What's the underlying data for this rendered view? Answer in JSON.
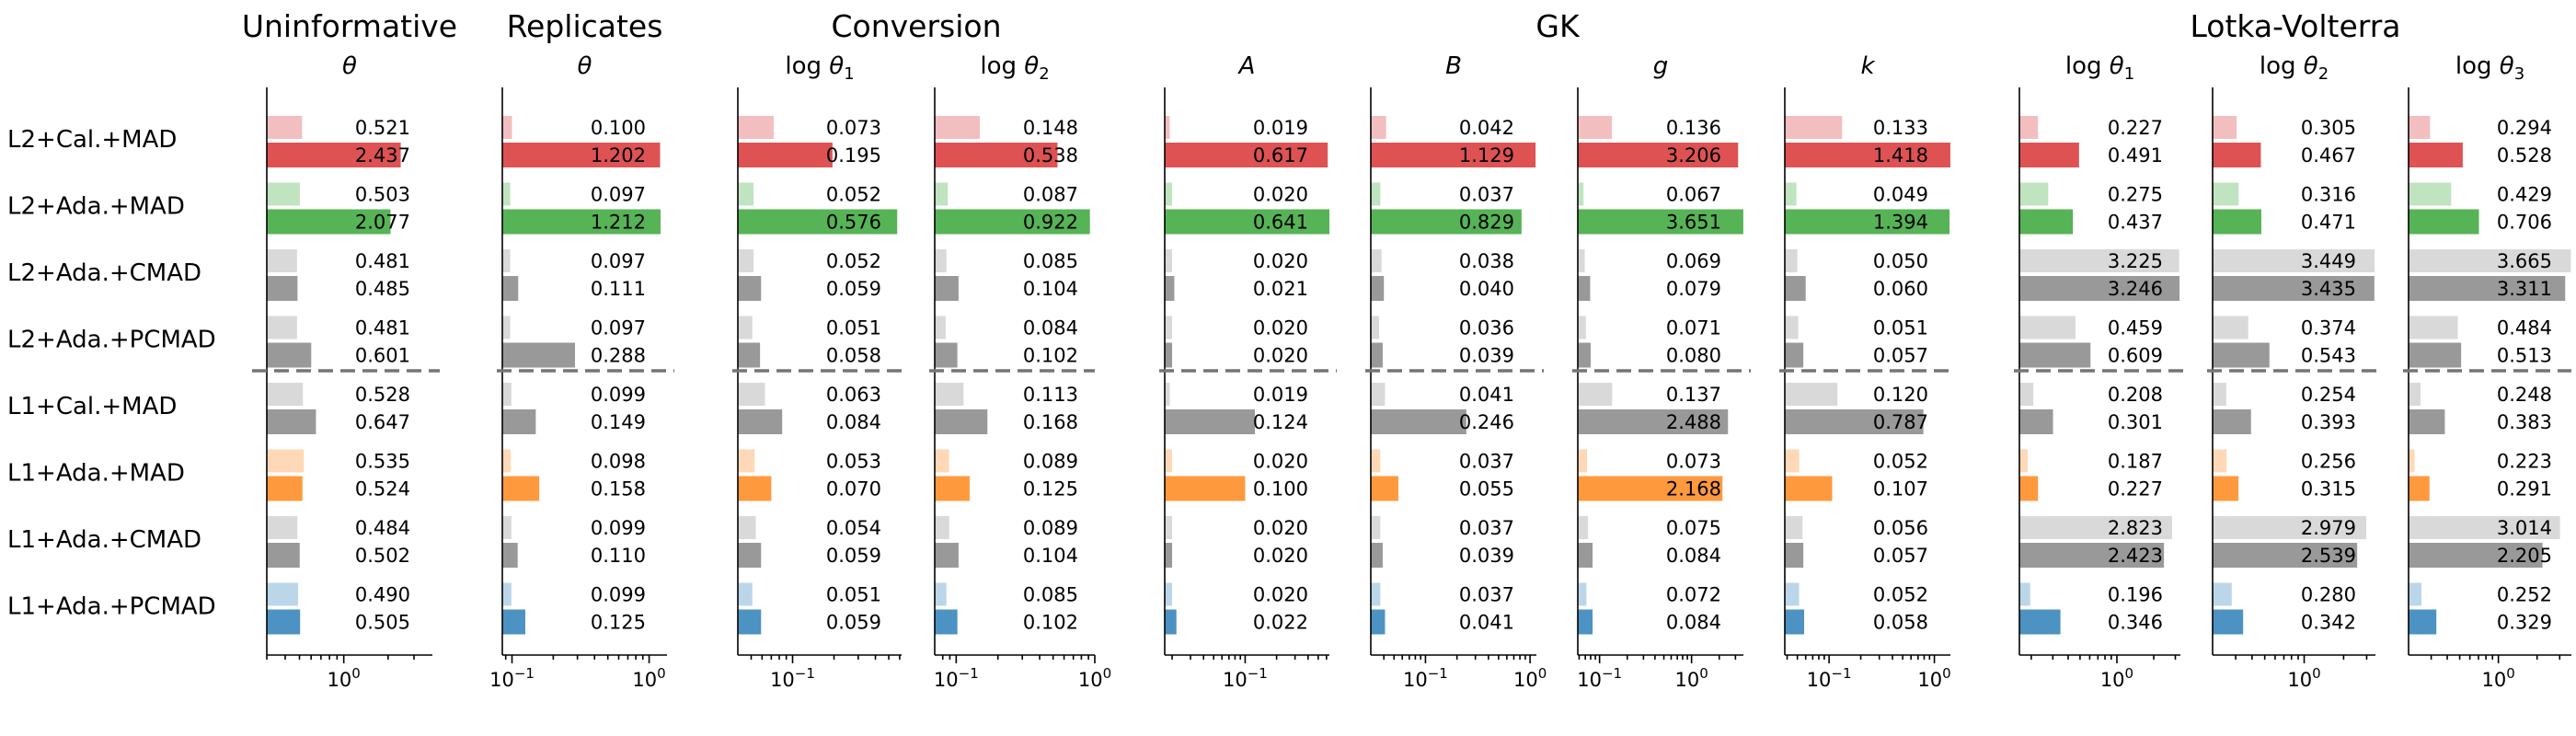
{
  "chart_data": {
    "type": "bar",
    "orientation": "horizontal",
    "x_scale": "log",
    "groups": [
      {
        "title": "Uninformative",
        "panels": [
          0
        ]
      },
      {
        "title": "Replicates",
        "panels": [
          1
        ]
      },
      {
        "title": "Conversion",
        "panels": [
          2,
          3
        ]
      },
      {
        "title": "GK",
        "panels": [
          4,
          5,
          6,
          7
        ]
      },
      {
        "title": "Lotka-Volterra",
        "panels": [
          8,
          9,
          10
        ]
      }
    ],
    "methods": [
      "L2+Cal.+MAD",
      "L2+Ada.+MAD",
      "L2+Ada.+CMAD",
      "L2+Ada.+PCMAD",
      "L1+Cal.+MAD",
      "L1+Ada.+MAD",
      "L1+Ada.+CMAD",
      "L1+Ada.+PCMAD"
    ],
    "method_colors": [
      "#d62728",
      "#2ca02c",
      "#7f7f7f",
      "#7f7f7f",
      "#7f7f7f",
      "#ff7f0e",
      "#7f7f7f",
      "#1f77b4"
    ],
    "series_roles": [
      "upper value (light bar)",
      "lower value (dark bar)"
    ],
    "panels": [
      {
        "label": "θ",
        "prefix": "",
        "subscript": "",
        "xlim": [
          0.3,
          4.0
        ],
        "ticks": [
          {
            "value": 1,
            "label": "10",
            "exp": "0"
          }
        ],
        "light": [
          0.521,
          0.503,
          0.481,
          0.481,
          0.528,
          0.535,
          0.484,
          0.49
        ],
        "dark": [
          2.437,
          2.077,
          0.485,
          0.601,
          0.647,
          0.524,
          0.502,
          0.505
        ]
      },
      {
        "label": "θ",
        "prefix": "",
        "subscript": "",
        "xlim": [
          0.085,
          1.35
        ],
        "ticks": [
          {
            "value": 0.1,
            "label": "10",
            "exp": "−1"
          },
          {
            "value": 1,
            "label": "10",
            "exp": "0"
          }
        ],
        "light": [
          0.1,
          0.097,
          0.097,
          0.097,
          0.099,
          0.098,
          0.099,
          0.099
        ],
        "dark": [
          1.202,
          1.212,
          0.111,
          0.288,
          0.149,
          0.158,
          0.11,
          0.125
        ]
      },
      {
        "label": "θ",
        "prefix": "log ",
        "subscript": "1",
        "xlim": [
          0.04,
          0.62
        ],
        "ticks": [
          {
            "value": 0.1,
            "label": "10",
            "exp": "−1"
          }
        ],
        "light": [
          0.073,
          0.052,
          0.052,
          0.051,
          0.063,
          0.053,
          0.054,
          0.051
        ],
        "dark": [
          0.195,
          0.576,
          0.059,
          0.058,
          0.084,
          0.07,
          0.059,
          0.059
        ]
      },
      {
        "label": "θ",
        "prefix": "log ",
        "subscript": "2",
        "xlim": [
          0.07,
          1.0
        ],
        "ticks": [
          {
            "value": 0.1,
            "label": "10",
            "exp": "−1"
          },
          {
            "value": 1,
            "label": "10",
            "exp": "0"
          }
        ],
        "light": [
          0.148,
          0.087,
          0.085,
          0.084,
          0.113,
          0.089,
          0.089,
          0.085
        ],
        "dark": [
          0.538,
          0.922,
          0.104,
          0.102,
          0.168,
          0.125,
          0.104,
          0.102
        ]
      },
      {
        "label": "A",
        "prefix": "",
        "subscript": "",
        "xlim": [
          0.017,
          0.64
        ],
        "ticks": [
          {
            "value": 0.1,
            "label": "10",
            "exp": "−1"
          }
        ],
        "light": [
          0.019,
          0.02,
          0.02,
          0.02,
          0.019,
          0.02,
          0.02,
          0.02
        ],
        "dark": [
          0.617,
          0.641,
          0.021,
          0.02,
          0.124,
          0.1,
          0.02,
          0.022
        ]
      },
      {
        "label": "B",
        "prefix": "",
        "subscript": "",
        "xlim": [
          0.03,
          1.15
        ],
        "ticks": [
          {
            "value": 0.1,
            "label": "10",
            "exp": "−1"
          },
          {
            "value": 1,
            "label": "10",
            "exp": "0"
          }
        ],
        "light": [
          0.042,
          0.037,
          0.038,
          0.036,
          0.041,
          0.037,
          0.037,
          0.037
        ],
        "dark": [
          1.129,
          0.829,
          0.04,
          0.039,
          0.246,
          0.055,
          0.039,
          0.041
        ]
      },
      {
        "label": "g",
        "prefix": "",
        "subscript": "",
        "xlim": [
          0.058,
          3.66
        ],
        "ticks": [
          {
            "value": 0.1,
            "label": "10",
            "exp": "−1"
          },
          {
            "value": 1,
            "label": "10",
            "exp": "0"
          }
        ],
        "light": [
          0.136,
          0.067,
          0.069,
          0.071,
          0.137,
          0.073,
          0.075,
          0.072
        ],
        "dark": [
          3.206,
          3.651,
          0.079,
          0.08,
          2.488,
          2.168,
          0.084,
          0.084
        ]
      },
      {
        "label": "k",
        "prefix": "",
        "subscript": "",
        "xlim": [
          0.038,
          1.42
        ],
        "ticks": [
          {
            "value": 0.1,
            "label": "10",
            "exp": "−1"
          },
          {
            "value": 1,
            "label": "10",
            "exp": "0"
          }
        ],
        "light": [
          0.133,
          0.049,
          0.05,
          0.051,
          0.12,
          0.052,
          0.056,
          0.052
        ],
        "dark": [
          1.418,
          1.394,
          0.06,
          0.057,
          0.787,
          0.107,
          0.057,
          0.058
        ]
      },
      {
        "label": "θ",
        "prefix": "log ",
        "subscript": "1",
        "xlim": [
          0.16,
          3.3
        ],
        "ticks": [
          {
            "value": 1,
            "label": "10",
            "exp": "0"
          }
        ],
        "light": [
          0.227,
          0.275,
          3.225,
          0.459,
          0.208,
          0.187,
          2.823,
          0.196
        ],
        "dark": [
          0.491,
          0.437,
          3.246,
          0.609,
          0.301,
          0.227,
          2.423,
          0.346
        ]
      },
      {
        "label": "θ",
        "prefix": "log ",
        "subscript": "2",
        "xlim": [
          0.2,
          3.5
        ],
        "ticks": [
          {
            "value": 1,
            "label": "10",
            "exp": "0"
          }
        ],
        "light": [
          0.305,
          0.316,
          3.449,
          0.374,
          0.254,
          0.256,
          2.979,
          0.28
        ],
        "dark": [
          0.467,
          0.471,
          3.435,
          0.543,
          0.393,
          0.315,
          2.539,
          0.342
        ]
      },
      {
        "label": "θ",
        "prefix": "log ",
        "subscript": "3",
        "xlim": [
          0.2,
          3.7
        ],
        "ticks": [
          {
            "value": 1,
            "label": "10",
            "exp": "0"
          }
        ],
        "light": [
          0.294,
          0.429,
          3.665,
          0.484,
          0.248,
          0.223,
          3.014,
          0.252
        ],
        "dark": [
          0.528,
          0.706,
          3.311,
          0.513,
          0.383,
          0.291,
          2.205,
          0.329
        ]
      }
    ]
  }
}
